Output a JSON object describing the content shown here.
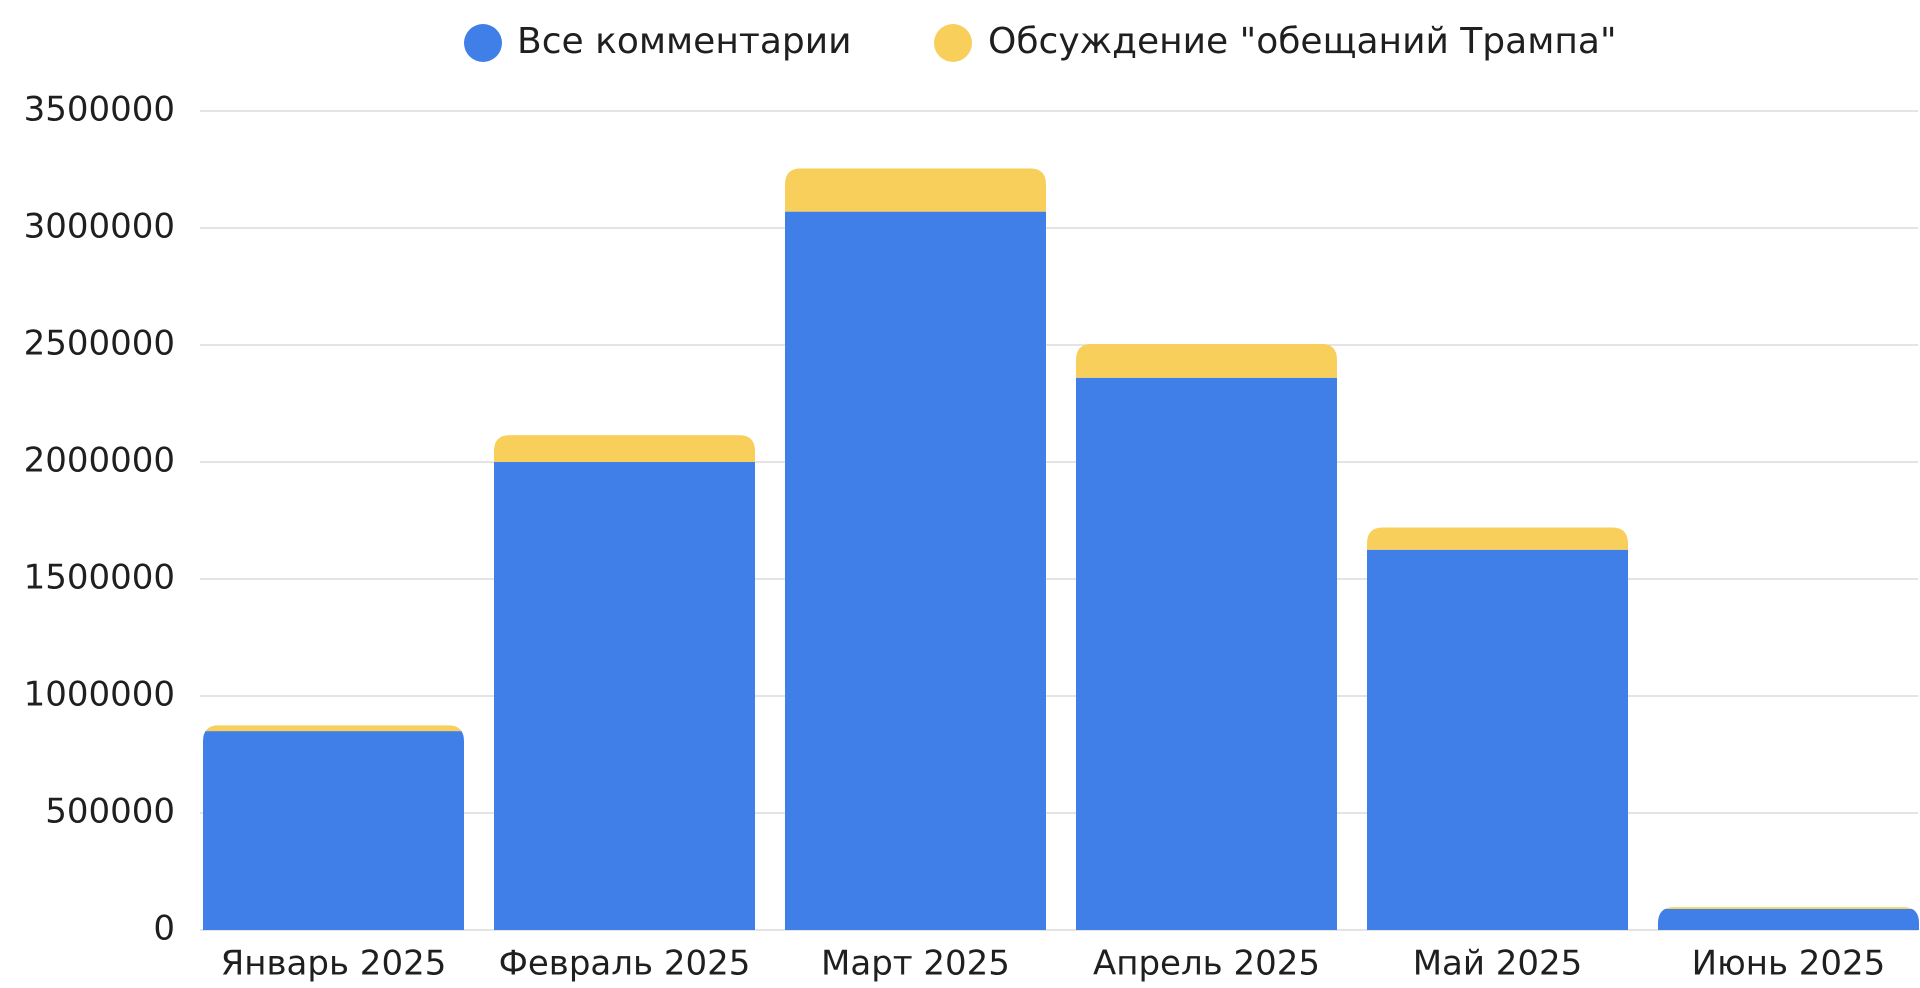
{
  "chart_data": {
    "type": "bar",
    "stacked": true,
    "title": "",
    "xlabel": "",
    "ylabel": "",
    "categories": [
      "Январь 2025",
      "Февраль 2025",
      "Март 2025",
      "Апрель 2025",
      "Май 2025",
      "Июнь 2025"
    ],
    "series": [
      {
        "name": "Все комментарии",
        "color": "#407ee8",
        "values": [
          850000,
          2000000,
          3070000,
          2360000,
          1625000,
          90000
        ]
      },
      {
        "name": "Обсуждение \"обещаний Трампа\"",
        "color": "#f8cf5a",
        "values": [
          25000,
          115000,
          185000,
          145000,
          95000,
          8000
        ]
      }
    ],
    "ylim": [
      0,
      3500000
    ],
    "yticks": [
      0,
      500000,
      1000000,
      1500000,
      2000000,
      2500000,
      3000000,
      3500000
    ],
    "ytick_labels": [
      "0",
      "500000",
      "1000000",
      "1500000",
      "2000000",
      "2500000",
      "3000000",
      "3500000"
    ],
    "grid": true,
    "legend_position": "top-center"
  }
}
